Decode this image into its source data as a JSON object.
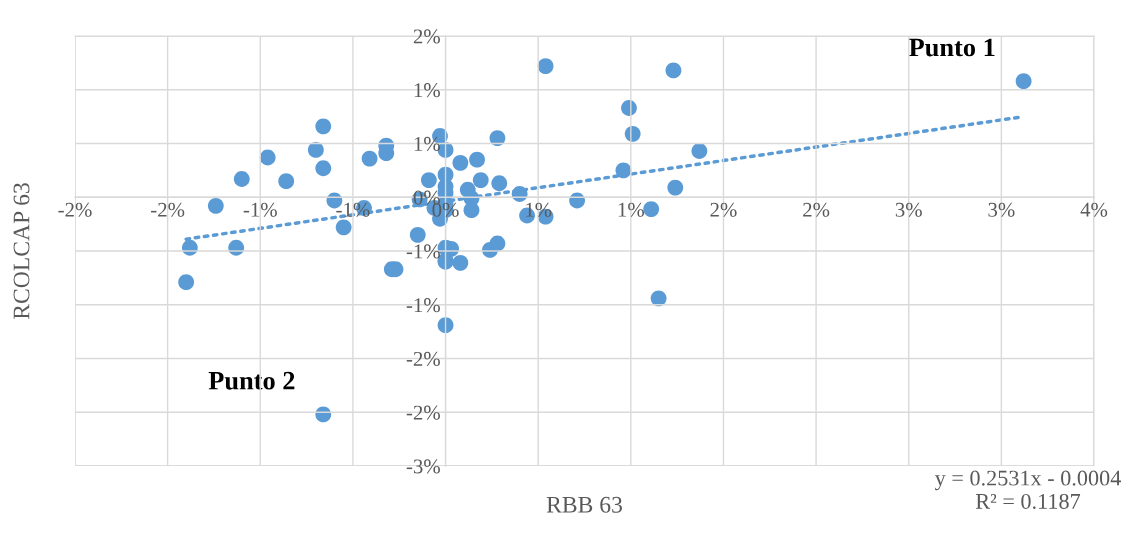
{
  "chart_data": {
    "type": "scatter",
    "xlabel": "RBB 63",
    "ylabel": "RCOLCAP 63",
    "grid": true,
    "marker": "circle",
    "xlim": [
      -0.02,
      0.035
    ],
    "ylim": [
      -0.025,
      0.015
    ],
    "xticks": [
      {
        "value": -0.02,
        "label": "-2%"
      },
      {
        "value": -0.015,
        "label": "-2%"
      },
      {
        "value": -0.01,
        "label": "-1%"
      },
      {
        "value": -0.005,
        "label": "-1%"
      },
      {
        "value": 0,
        "label": "0%"
      },
      {
        "value": 0.005,
        "label": "1%"
      },
      {
        "value": 0.01,
        "label": "1%"
      },
      {
        "value": 0.015,
        "label": "2%"
      },
      {
        "value": 0.02,
        "label": "2%"
      },
      {
        "value": 0.025,
        "label": "3%"
      },
      {
        "value": 0.03,
        "label": "3%"
      },
      {
        "value": 0.035,
        "label": "4%"
      }
    ],
    "yticks": [
      {
        "value": -0.025,
        "label": "-3%"
      },
      {
        "value": -0.02,
        "label": "-2%"
      },
      {
        "value": -0.015,
        "label": "-2%"
      },
      {
        "value": -0.01,
        "label": "-1%"
      },
      {
        "value": -0.005,
        "label": "-1%"
      },
      {
        "value": 0,
        "label": "0%"
      },
      {
        "value": 0.005,
        "label": "1%"
      },
      {
        "value": 0.01,
        "label": "1%"
      },
      {
        "value": 0.015,
        "label": "2%"
      }
    ],
    "series": [
      {
        "color": "#5b9bd5",
        "x": [
          -0.0066,
          -0.007,
          -0.0066,
          -0.0096,
          -0.011,
          -0.0086,
          -0.0124,
          -0.006,
          -0.0055,
          -0.0044,
          -0.0041,
          -0.0032,
          -0.0032,
          -0.0138,
          -0.0113,
          -0.014,
          -0.0029,
          -0.0027,
          -0.0015,
          -0.0014,
          -0.0009,
          -0.0006,
          -0.0003,
          0,
          0.0008,
          0.0017,
          0.0028,
          0.0054,
          0.0123,
          0.0099,
          0.0101,
          0.0137,
          0.0096,
          0.0124,
          0.0111,
          0.0071,
          0.004,
          0.0044,
          0.0054,
          0,
          0,
          0,
          0.0019,
          0.0029,
          0.0012,
          0.0014,
          0.0014,
          0,
          0,
          -0.0003,
          0,
          0.0003,
          0,
          0,
          0.0008,
          0.0024,
          0.0028,
          0.0115,
          0,
          0.0312,
          -0.0066
        ],
        "values": [
          0.0066,
          0.0044,
          0.0027,
          0.0037,
          0.0017,
          0.0015,
          -0.0008,
          -0.0003,
          -0.0028,
          -0.001,
          0.0036,
          0.0048,
          0.0041,
          -0.0047,
          -0.0047,
          -0.0079,
          -0.0067,
          -0.0067,
          -0.0035,
          -0.0002,
          0.0016,
          -0.001,
          0.0057,
          0.0044,
          0.0032,
          0.0035,
          0.0055,
          0.0122,
          0.0118,
          0.0083,
          0.0059,
          0.0043,
          0.0025,
          0.0009,
          -0.0011,
          -0.0003,
          0.0003,
          -0.0017,
          -0.0018,
          0.0021,
          0.001,
          0.0004,
          0.0016,
          0.0013,
          0.0007,
          -0.0001,
          -0.0012,
          -0.0006,
          -0.0012,
          -0.002,
          -0.0047,
          -0.0048,
          -0.006,
          -0.0059,
          -0.0061,
          -0.0049,
          -0.0043,
          -0.0094,
          -0.0119,
          0.0108,
          -0.0202
        ]
      },
      {
        "type": "line",
        "color": "#5b9bd5",
        "line_style": "dotted",
        "marker": "none",
        "x": [
          -0.014,
          0.0312
        ],
        "values": [
          -0.0039,
          0.0075
        ]
      }
    ],
    "annotations": [
      {
        "text": "Punto 1",
        "x": 0.0312,
        "y": 0.0108
      },
      {
        "text": "Punto 2",
        "x": -0.0066,
        "y": -0.0202
      },
      "y = 0.2531x - 0.0004\nR² = 0.1187"
    ]
  }
}
